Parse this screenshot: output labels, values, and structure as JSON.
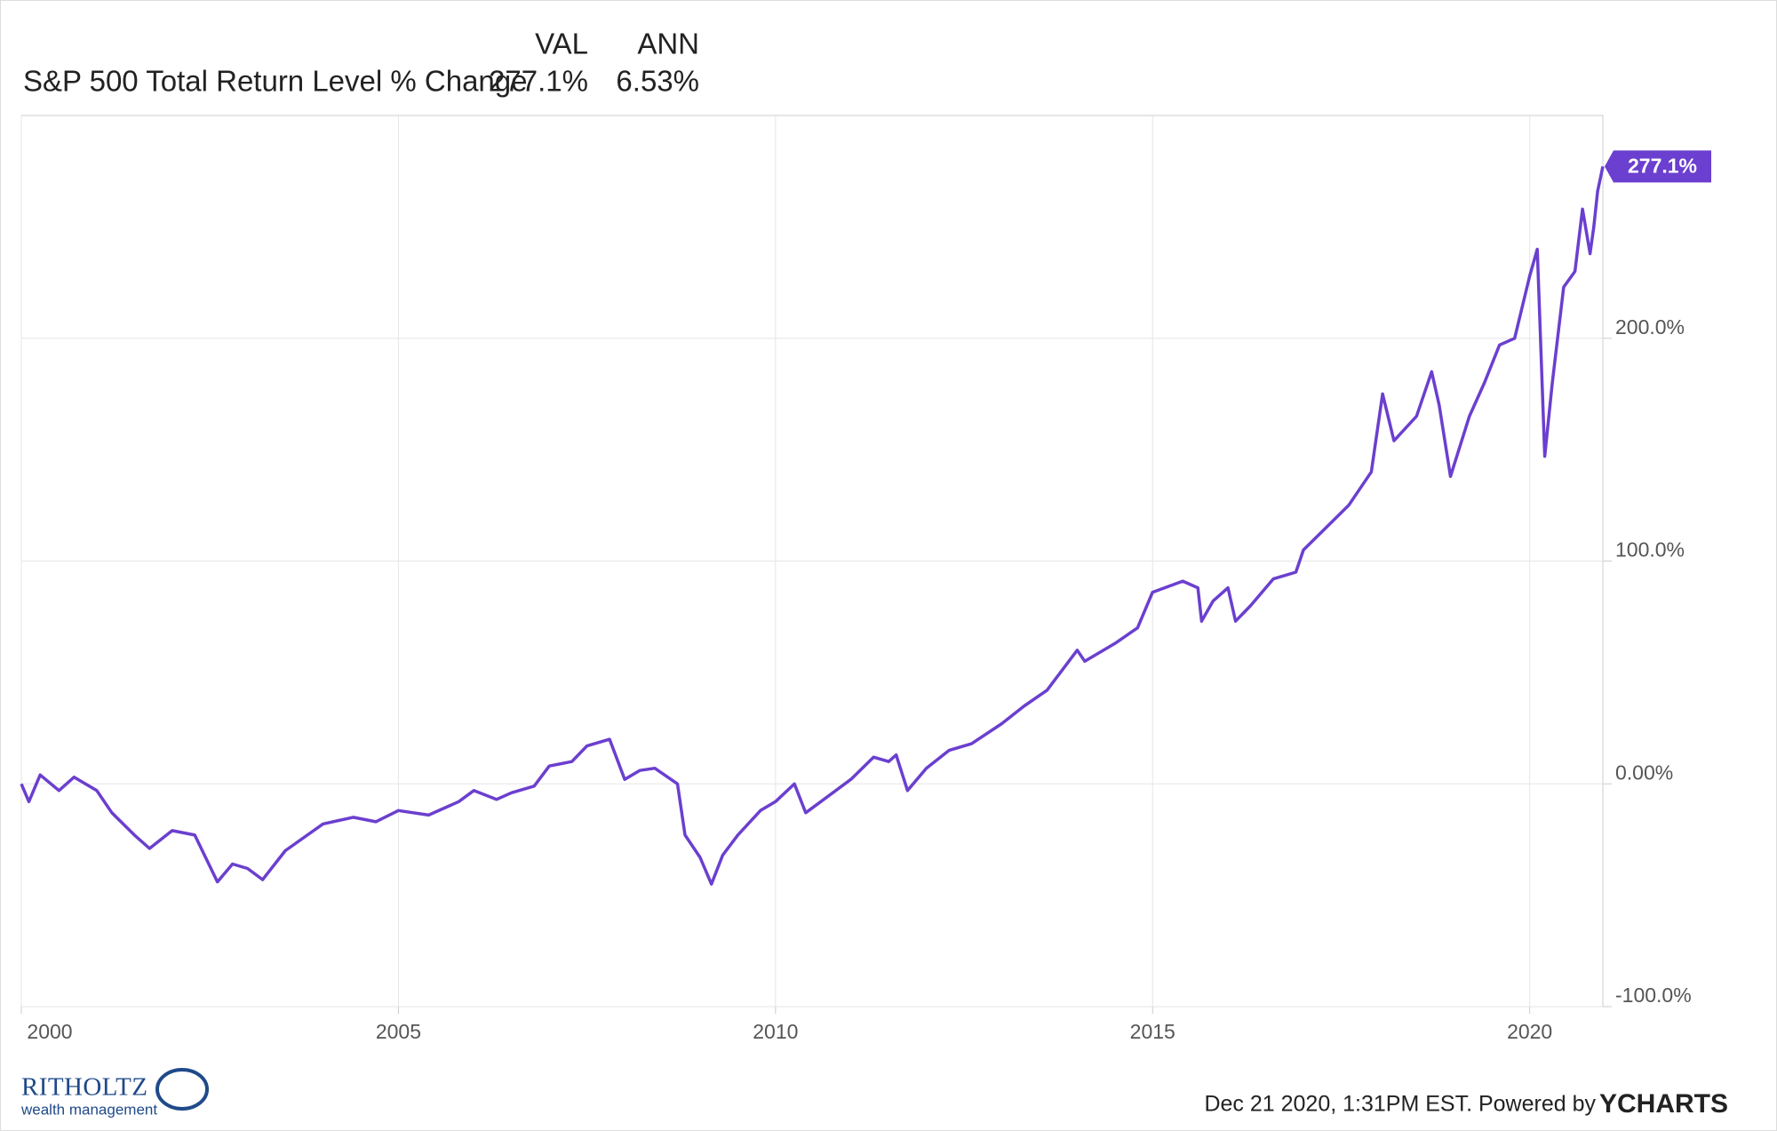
{
  "chart_data": {
    "type": "line",
    "header_columns": [
      "VAL",
      "ANN"
    ],
    "header_values": [
      "277.1%",
      "6.53%"
    ],
    "last_value_label": "277.1%",
    "x": [
      2000.0,
      2000.1,
      2000.25,
      2000.5,
      2000.7,
      2001.0,
      2001.2,
      2001.5,
      2001.7,
      2002.0,
      2002.3,
      2002.6,
      2002.8,
      2003.0,
      2003.2,
      2003.5,
      2004.0,
      2004.4,
      2004.7,
      2005.0,
      2005.4,
      2005.8,
      2006.0,
      2006.3,
      2006.5,
      2006.8,
      2007.0,
      2007.3,
      2007.5,
      2007.8,
      2008.0,
      2008.2,
      2008.4,
      2008.7,
      2008.8,
      2009.0,
      2009.15,
      2009.3,
      2009.5,
      2009.8,
      2010.0,
      2010.25,
      2010.4,
      2010.6,
      2011.0,
      2011.3,
      2011.5,
      2011.6,
      2011.75,
      2012.0,
      2012.3,
      2012.6,
      2013.0,
      2013.3,
      2013.6,
      2014.0,
      2014.1,
      2014.5,
      2014.8,
      2015.0,
      2015.4,
      2015.6,
      2015.65,
      2015.8,
      2016.0,
      2016.1,
      2016.3,
      2016.6,
      2016.9,
      2017.0,
      2017.3,
      2017.6,
      2017.9,
      2018.05,
      2018.2,
      2018.5,
      2018.7,
      2018.8,
      2018.95,
      2019.2,
      2019.4,
      2019.6,
      2019.8,
      2020.0,
      2020.1,
      2020.2,
      2020.3,
      2020.45,
      2020.6,
      2020.7,
      2020.8,
      2020.85,
      2020.9,
      2020.97
    ],
    "series": [
      {
        "name": "S&P 500 Total Return Level % Change",
        "color": "#6b3fcf",
        "values": [
          0,
          -8,
          4,
          -3,
          3,
          -3,
          -13,
          -23,
          -29,
          -21,
          -23,
          -44,
          -36,
          -38,
          -43,
          -30,
          -18,
          -15,
          -17,
          -12,
          -14,
          -8,
          -3,
          -7,
          -4,
          -1,
          8,
          10,
          17,
          20,
          2,
          6,
          7,
          0,
          -23,
          -33,
          -45,
          -32,
          -23,
          -12,
          -8,
          0,
          -13,
          -8,
          2,
          12,
          10,
          13,
          -3,
          7,
          15,
          18,
          27,
          35,
          42,
          60,
          55,
          63,
          70,
          86,
          91,
          88,
          73,
          82,
          88,
          73,
          80,
          92,
          95,
          105,
          115,
          125,
          140,
          175,
          154,
          165,
          185,
          170,
          138,
          165,
          180,
          197,
          200,
          228,
          240,
          147,
          180,
          223,
          230,
          258,
          238,
          250,
          266,
          277.1
        ]
      }
    ],
    "xlim": [
      2000,
      2020.97
    ],
    "xticks": [
      2000,
      2005,
      2010,
      2015,
      2020
    ],
    "ylim": [
      -100,
      300
    ],
    "yticks": [
      {
        "value": -100,
        "label": "-100.0%"
      },
      {
        "value": 0,
        "label": "0.00%"
      },
      {
        "value": 100,
        "label": "100.0%"
      },
      {
        "value": 200,
        "label": "200.0%"
      }
    ],
    "grid": true
  },
  "branding": {
    "logo": "RITHOLTZ",
    "logo_sub": "wealth management",
    "footer": "Dec 21 2020, 1:31PM EST. Powered by",
    "footer_brand": "YCHARTS"
  }
}
